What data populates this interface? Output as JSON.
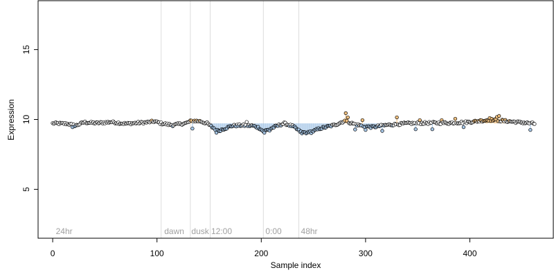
{
  "chart_data": {
    "type": "scatter",
    "title": "",
    "xlabel": "Sample index",
    "ylabel": "Expression",
    "xlim": [
      -14,
      480
    ],
    "ylim": [
      1.5,
      18.5
    ],
    "x_ticks": [
      0,
      100,
      200,
      300,
      400
    ],
    "y_ticks": [
      5,
      10,
      15
    ],
    "grid": false,
    "legend": "none",
    "colors": {
      "point_stroke": "#000000",
      "point_default": "#ffffff",
      "point_low": "#a8c8e8",
      "point_high": "#f0c080",
      "bar_fill": "#a8c8e8",
      "divider": "#dcdcdc",
      "region_label": "#a0a0a0"
    },
    "baseline": 9.72,
    "dividers": [
      104,
      132,
      151,
      202,
      236
    ],
    "region_labels": [
      {
        "x": 3,
        "text": "24hr"
      },
      {
        "x": 107,
        "text": "dawn"
      },
      {
        "x": 133,
        "text": "dusk"
      },
      {
        "x": 152,
        "text": "12:00"
      },
      {
        "x": 204,
        "text": "0:00"
      },
      {
        "x": 238,
        "text": "48hr"
      }
    ],
    "n_points": 463,
    "segments": [
      [
        0,
        9.72
      ],
      [
        14,
        9.7
      ],
      [
        22,
        9.55
      ],
      [
        30,
        9.8
      ],
      [
        42,
        9.74
      ],
      [
        56,
        9.82
      ],
      [
        70,
        9.7
      ],
      [
        88,
        9.78
      ],
      [
        98,
        9.86
      ],
      [
        104,
        9.72
      ],
      [
        115,
        9.6
      ],
      [
        128,
        9.74
      ],
      [
        134,
        9.92
      ],
      [
        142,
        9.86
      ],
      [
        148,
        9.72
      ],
      [
        153,
        9.45
      ],
      [
        158,
        9.2
      ],
      [
        163,
        9.3
      ],
      [
        172,
        9.55
      ],
      [
        182,
        9.58
      ],
      [
        192,
        9.55
      ],
      [
        198,
        9.4
      ],
      [
        202,
        9.15
      ],
      [
        206,
        9.25
      ],
      [
        212,
        9.45
      ],
      [
        222,
        9.72
      ],
      [
        230,
        9.52
      ],
      [
        238,
        9.1
      ],
      [
        246,
        9.05
      ],
      [
        256,
        9.35
      ],
      [
        270,
        9.6
      ],
      [
        280,
        9.9
      ],
      [
        288,
        9.7
      ],
      [
        296,
        9.55
      ],
      [
        306,
        9.45
      ],
      [
        320,
        9.6
      ],
      [
        340,
        9.72
      ],
      [
        360,
        9.75
      ],
      [
        380,
        9.75
      ],
      [
        400,
        9.82
      ],
      [
        420,
        9.98
      ],
      [
        440,
        9.85
      ],
      [
        462,
        9.7
      ]
    ],
    "outliers": [
      [
        19,
        9.45
      ],
      [
        134,
        9.35
      ],
      [
        157,
        9.05
      ],
      [
        161,
        9.18
      ],
      [
        186,
        9.82
      ],
      [
        203,
        9.05
      ],
      [
        208,
        9.2
      ],
      [
        239,
        9.0
      ],
      [
        244,
        9.05
      ],
      [
        247,
        9.15
      ],
      [
        281,
        10.45
      ],
      [
        283,
        10.15
      ],
      [
        290,
        9.28
      ],
      [
        297,
        9.95
      ],
      [
        300,
        9.25
      ],
      [
        316,
        9.18
      ],
      [
        330,
        10.15
      ],
      [
        348,
        9.3
      ],
      [
        352,
        9.95
      ],
      [
        364,
        9.3
      ],
      [
        373,
        9.95
      ],
      [
        386,
        10.05
      ],
      [
        394,
        9.45
      ],
      [
        410,
        9.95
      ],
      [
        419,
        10.1
      ],
      [
        426,
        10.18
      ],
      [
        428,
        10.25
      ],
      [
        458,
        9.25
      ]
    ]
  }
}
